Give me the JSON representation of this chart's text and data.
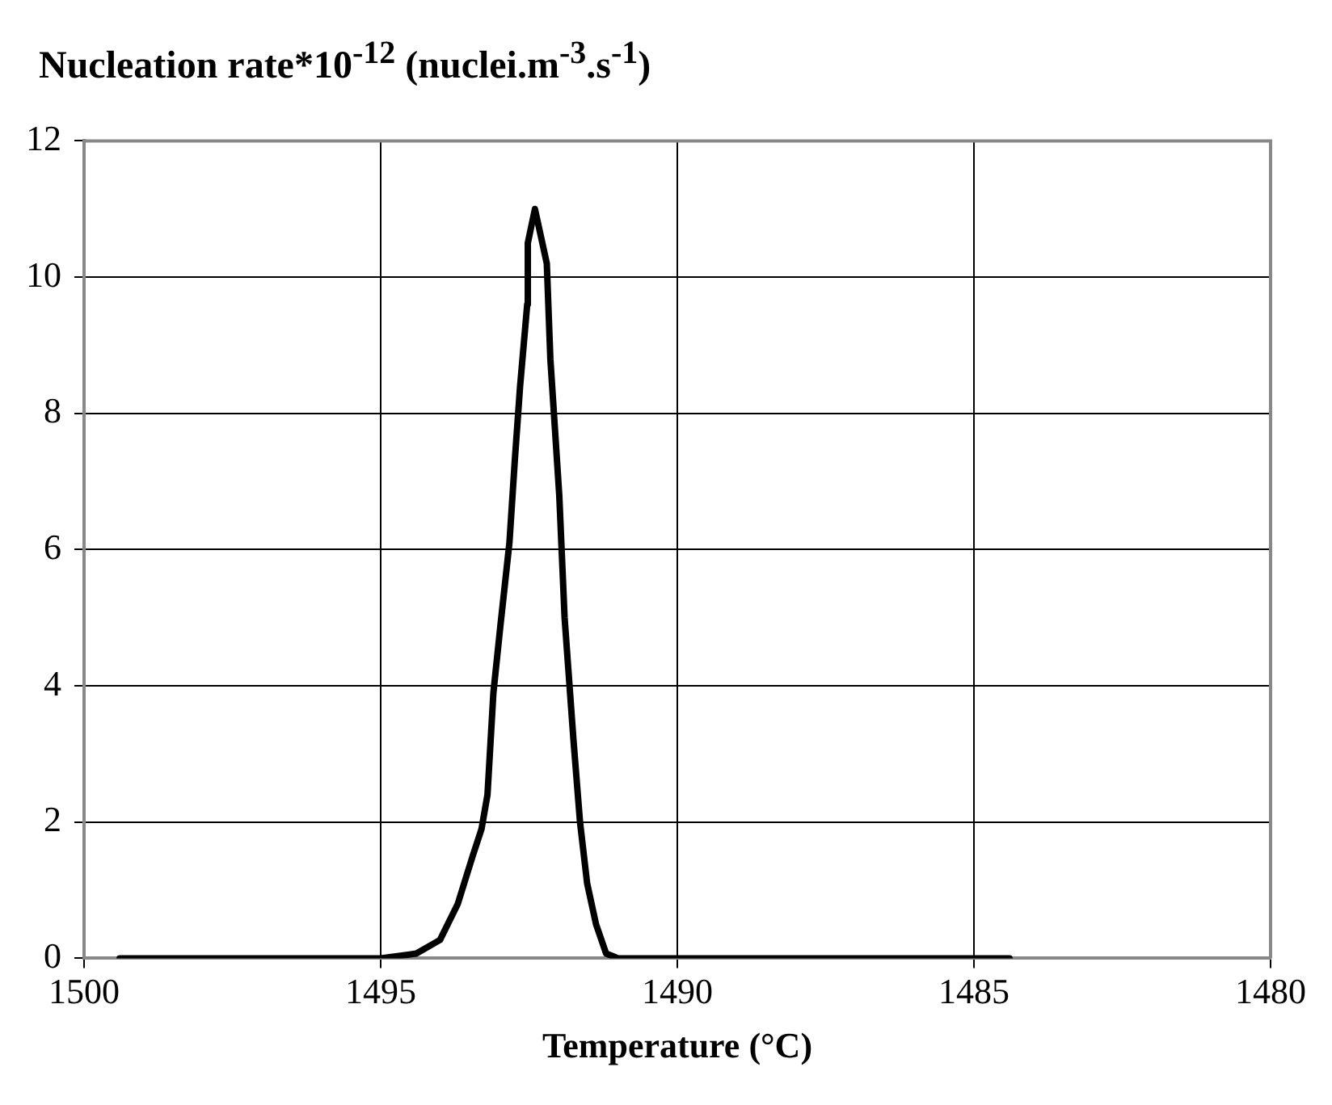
{
  "chart_data": {
    "type": "line",
    "ylabel": "Nucleation rate*10$^{-12}$ (nuclei.m$^{-3}$.s$^{-1}$)",
    "xlabel": "Temperature (°C)",
    "x": [
      1499.4,
      1495.0,
      1494.4,
      1494.0,
      1493.7,
      1493.45,
      1493.3,
      1493.2,
      1493.1,
      1492.98,
      1492.83,
      1492.74,
      1492.65,
      1492.53,
      1492.52,
      1492.4,
      1492.2,
      1492.14,
      1491.99,
      1491.9,
      1491.75,
      1491.64,
      1491.52,
      1491.37,
      1491.2,
      1491.0,
      1484.4
    ],
    "series": [
      {
        "color": "#000000",
        "values": [
          0,
          0,
          0.07,
          0.27,
          0.8,
          1.5,
          1.9,
          2.4,
          3.9,
          4.9,
          6.1,
          7.3,
          8.4,
          9.6,
          10.5,
          11,
          10.2,
          8.8,
          6.8,
          5,
          3.2,
          2,
          1.1,
          0.5,
          0.07,
          0,
          0
        ]
      }
    ],
    "xlim": [
      1500,
      1480
    ],
    "xticks": [
      1500,
      1495,
      1490,
      1485,
      1480
    ],
    "ylim": [
      0,
      12
    ],
    "yticks": [
      0,
      2,
      4,
      6,
      8,
      10,
      12
    ],
    "grid": true,
    "legend": false,
    "marker": "none",
    "line_style": "solid"
  }
}
